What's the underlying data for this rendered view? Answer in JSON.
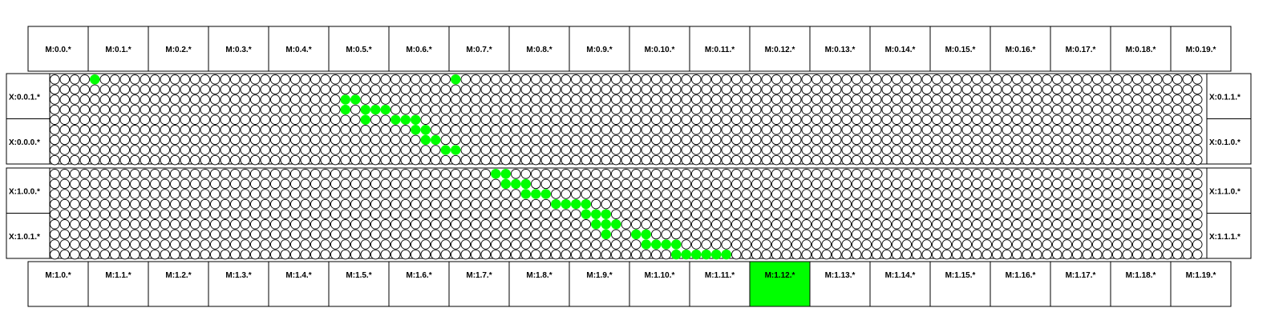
{
  "colors": {
    "background": "#ffffff",
    "border": "#000000",
    "cell_off": "#ffffff",
    "cell_on": "#00ff00",
    "highlight": "#00ff00"
  },
  "top_labels": [
    "M:0.0.*",
    "M:0.1.*",
    "M:0.2.*",
    "M:0.3.*",
    "M:0.4.*",
    "M:0.5.*",
    "M:0.6.*",
    "M:0.7.*",
    "M:0.8.*",
    "M:0.9.*",
    "M:0.10.*",
    "M:0.11.*",
    "M:0.12.*",
    "M:0.13.*",
    "M:0.14.*",
    "M:0.15.*",
    "M:0.16.*",
    "M:0.17.*",
    "M:0.18.*",
    "M:0.19.*"
  ],
  "bottom_labels": [
    "M:1.0.*",
    "M:1.1.*",
    "M:1.2.*",
    "M:1.3.*",
    "M:1.4.*",
    "M:1.5.*",
    "M:1.6.*",
    "M:1.7.*",
    "M:1.8.*",
    "M:1.9.*",
    "M:1.10.*",
    "M:1.11.*",
    "M:1.12.*",
    "M:1.13.*",
    "M:1.14.*",
    "M:1.15.*",
    "M:1.16.*",
    "M:1.17.*",
    "M:1.18.*",
    "M:1.19.*"
  ],
  "highlighted_bottom_label": "M:1.12.*",
  "blocks": [
    {
      "left_labels": [
        "X:0.0.1.*",
        "X:0.0.0.*"
      ],
      "right_labels": [
        "X:0.1.1.*",
        "X:0.1.0.*"
      ],
      "rows": 9,
      "cols": 115,
      "on_cells": [
        [
          0,
          4
        ],
        [
          0,
          40
        ],
        [
          2,
          29
        ],
        [
          2,
          30
        ],
        [
          3,
          29
        ],
        [
          3,
          31
        ],
        [
          3,
          32
        ],
        [
          3,
          33
        ],
        [
          4,
          31
        ],
        [
          4,
          34
        ],
        [
          4,
          35
        ],
        [
          4,
          36
        ],
        [
          5,
          36
        ],
        [
          5,
          37
        ],
        [
          6,
          37
        ],
        [
          6,
          38
        ],
        [
          7,
          39
        ],
        [
          7,
          40
        ]
      ]
    },
    {
      "left_labels": [
        "X:1.0.0.*",
        "X:1.0.1.*"
      ],
      "right_labels": [
        "X:1.1.0.*",
        "X:1.1.1.*"
      ],
      "rows": 9,
      "cols": 115,
      "on_cells": [
        [
          0,
          44
        ],
        [
          0,
          45
        ],
        [
          1,
          45
        ],
        [
          1,
          46
        ],
        [
          1,
          47
        ],
        [
          2,
          47
        ],
        [
          2,
          48
        ],
        [
          2,
          49
        ],
        [
          3,
          50
        ],
        [
          3,
          51
        ],
        [
          3,
          52
        ],
        [
          3,
          53
        ],
        [
          4,
          53
        ],
        [
          4,
          54
        ],
        [
          4,
          55
        ],
        [
          5,
          54
        ],
        [
          5,
          55
        ],
        [
          5,
          56
        ],
        [
          6,
          55
        ],
        [
          6,
          58
        ],
        [
          6,
          59
        ],
        [
          7,
          59
        ],
        [
          7,
          60
        ],
        [
          7,
          61
        ],
        [
          7,
          62
        ],
        [
          8,
          62
        ],
        [
          8,
          63
        ],
        [
          8,
          64
        ],
        [
          8,
          65
        ],
        [
          8,
          66
        ],
        [
          8,
          67
        ]
      ]
    }
  ]
}
